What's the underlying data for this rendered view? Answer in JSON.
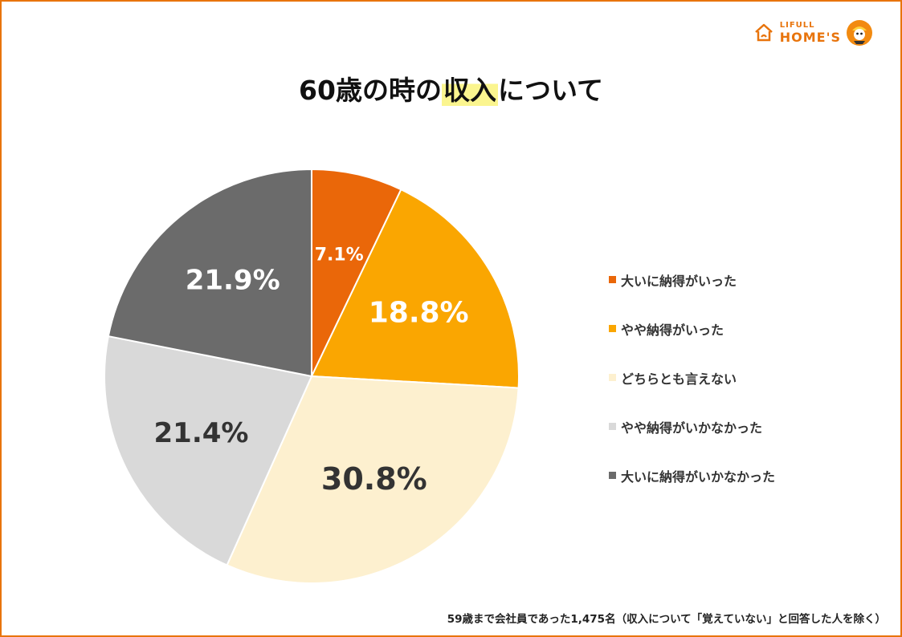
{
  "logo": {
    "line1": "LIFULL",
    "line2": "HOME'S"
  },
  "title": {
    "prefix": "60歳の時の",
    "highlight": "収入",
    "suffix": "について"
  },
  "chart_data": {
    "type": "pie",
    "start_angle_deg": 0,
    "direction": "clockwise",
    "slices": [
      {
        "label": "大いに納得がいった",
        "value": 7.1,
        "display": "7.1%",
        "color": "#ea6709",
        "label_color": "#ffffff"
      },
      {
        "label": "やや納得がいった",
        "value": 18.8,
        "display": "18.8%",
        "color": "#faa601",
        "label_color": "#ffffff"
      },
      {
        "label": "どちらとも言えない",
        "value": 30.8,
        "display": "30.8%",
        "color": "#fdf0cf",
        "label_color": "#333333"
      },
      {
        "label": "やや納得がいかなかった",
        "value": 21.4,
        "display": "21.4%",
        "color": "#d9d9d9",
        "label_color": "#333333"
      },
      {
        "label": "大いに納得がいかなかった",
        "value": 21.9,
        "display": "21.9%",
        "color": "#6b6b6b",
        "label_color": "#ffffff"
      }
    ],
    "legend_position": "right"
  },
  "footnote": "59歳まで会社員であった1,475名（収入について「覚えていない」と回答した人を除く）",
  "colors": {
    "border": "#e8740c",
    "highlight": "#fbf58f"
  }
}
